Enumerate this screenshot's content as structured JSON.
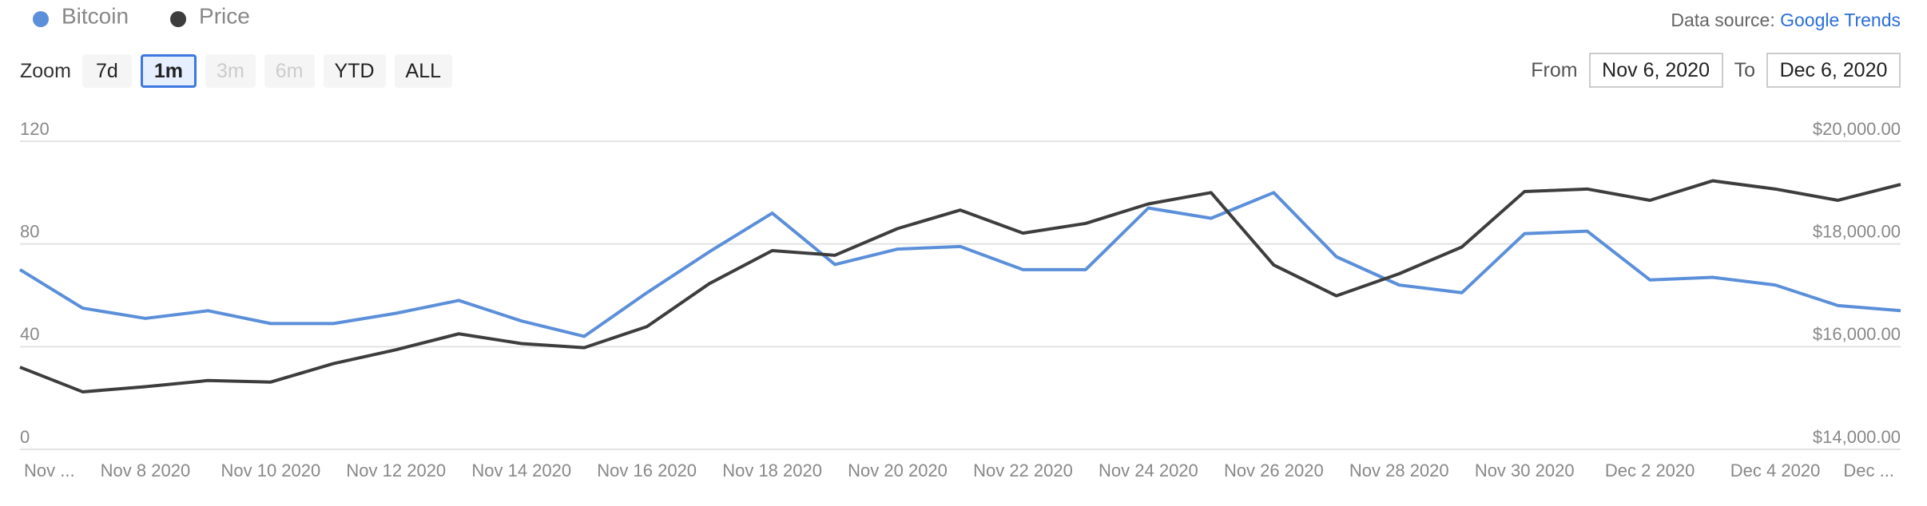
{
  "chart_data": {
    "type": "line",
    "categories": [
      "Nov ...",
      null,
      "Nov 8 2020",
      null,
      "Nov 10 2020",
      null,
      "Nov 12 2020",
      null,
      "Nov 14 2020",
      null,
      "Nov 16 2020",
      null,
      "Nov 18 2020",
      null,
      "Nov 20 2020",
      null,
      "Nov 22 2020",
      null,
      "Nov 24 2020",
      null,
      "Nov 26 2020",
      null,
      "Nov 28 2020",
      null,
      "Nov 30 2020",
      null,
      "Dec 2 2020",
      null,
      "Dec 4 2020",
      null,
      "Dec ..."
    ],
    "series": [
      {
        "name": "Bitcoin",
        "color": "#5b8fd9",
        "values": [
          70,
          55,
          51,
          54,
          49,
          49,
          53,
          58,
          50,
          44,
          61,
          77,
          92,
          72,
          78,
          79,
          70,
          70,
          94,
          90,
          100,
          75,
          64,
          61,
          84,
          85,
          66,
          67,
          64,
          56,
          54
        ]
      },
      {
        "name": "Price",
        "color": "#3d3d3d",
        "axis": "y2",
        "values": [
          15600,
          15120,
          15220,
          15340,
          15310,
          15670,
          15940,
          16250,
          16060,
          15980,
          16390,
          17230,
          17870,
          17780,
          18300,
          18660,
          18210,
          18400,
          18780,
          19000,
          17590,
          16990,
          17420,
          17940,
          19020,
          19070,
          18850,
          19230,
          19070,
          18850,
          19160
        ]
      }
    ],
    "ylim": [
      0,
      120
    ],
    "yticks": [
      0,
      40,
      80,
      120
    ],
    "y2lim": [
      14000,
      20000
    ],
    "y2ticks": [
      {
        "value": 14000,
        "label": "$14,000.00"
      },
      {
        "value": 16000,
        "label": "$16,000.00"
      },
      {
        "value": 18000,
        "label": "$18,000.00"
      },
      {
        "value": 20000,
        "label": "$20,000.00"
      }
    ],
    "grid": true,
    "legend": "top-left"
  },
  "source": {
    "label": "Data source:",
    "link": "Google Trends"
  },
  "zoom": {
    "label": "Zoom",
    "buttons": [
      "7d",
      "1m",
      "3m",
      "6m",
      "YTD",
      "ALL"
    ],
    "selected": 1,
    "disabled": [
      2,
      3
    ]
  },
  "range": {
    "from_label": "From",
    "from": "Nov 6, 2020",
    "to_label": "To",
    "to": "Dec 6, 2020"
  }
}
